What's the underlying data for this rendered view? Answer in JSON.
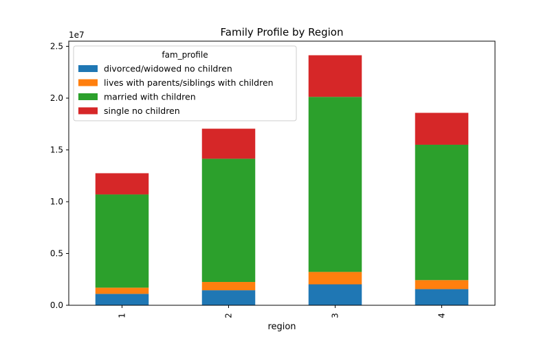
{
  "chart_data": {
    "type": "bar",
    "stacked": true,
    "title": "Family Profile by Region",
    "xlabel": "region",
    "ylabel": "",
    "categories": [
      "1",
      "2",
      "3",
      "4"
    ],
    "y_scale_label": "1e7",
    "ylim": [
      0,
      25500000
    ],
    "yticks": [
      {
        "value": 0,
        "label": "0.0"
      },
      {
        "value": 5000000,
        "label": "0.5"
      },
      {
        "value": 10000000,
        "label": "1.0"
      },
      {
        "value": 15000000,
        "label": "1.5"
      },
      {
        "value": 20000000,
        "label": "2.0"
      },
      {
        "value": 25000000,
        "label": "2.5"
      }
    ],
    "legend_title": "fam_profile",
    "legend_position": "top-left",
    "series": [
      {
        "name": "divorced/widowed no children",
        "color": "#1f77b4",
        "values": [
          1100000,
          1450000,
          2020000,
          1560000
        ]
      },
      {
        "name": "lives with parents/siblings with children",
        "color": "#ff7f0e",
        "values": [
          600000,
          800000,
          1200000,
          870000
        ]
      },
      {
        "name": "married with children",
        "color": "#2ca02c",
        "values": [
          9000000,
          11900000,
          16900000,
          13070000
        ]
      },
      {
        "name": "single no children",
        "color": "#d62728",
        "values": [
          2050000,
          2900000,
          4020000,
          3080000
        ]
      }
    ]
  }
}
